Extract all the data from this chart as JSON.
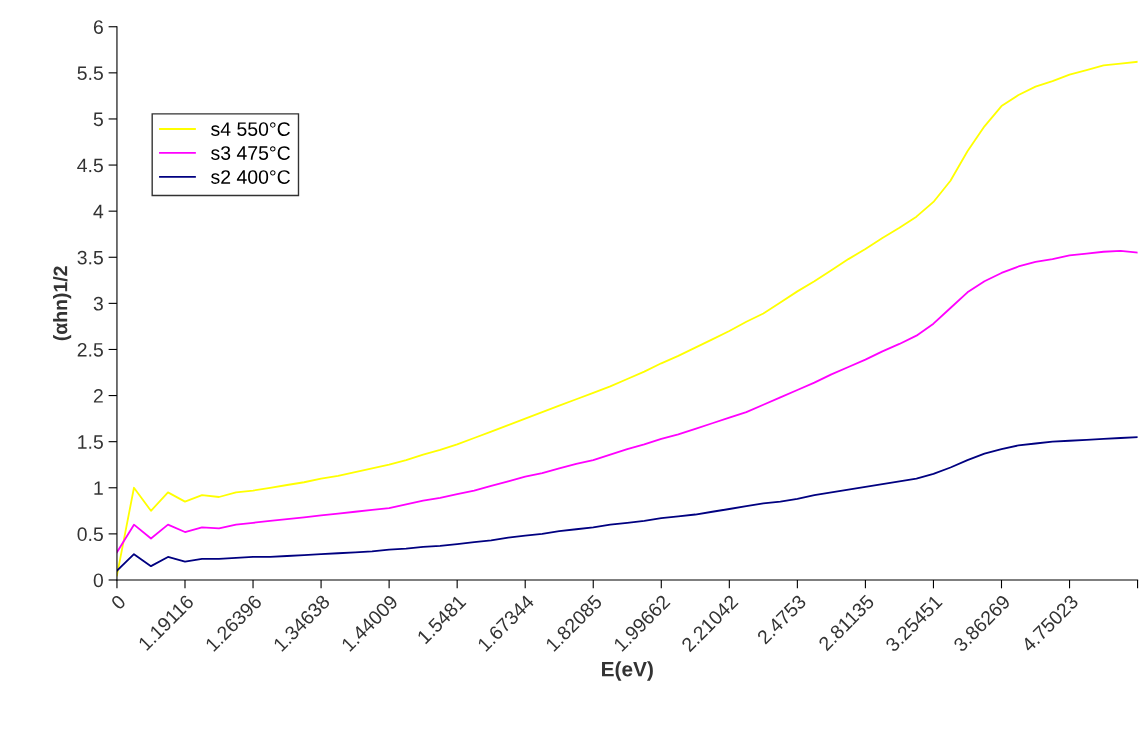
{
  "chart_data": {
    "type": "line",
    "xlabel": "E(eV)",
    "ylabel": "(αhn)1/2",
    "categories": [
      "0",
      null,
      null,
      null,
      "1.19116",
      null,
      null,
      null,
      "1.26396",
      null,
      null,
      null,
      "1.34638",
      null,
      null,
      null,
      "1.44009",
      null,
      null,
      null,
      "1.5481",
      null,
      null,
      null,
      "1.67344",
      null,
      null,
      null,
      "1.82085",
      null,
      null,
      null,
      "1.99662",
      null,
      null,
      null,
      "2.21042",
      null,
      null,
      null,
      "2.4753",
      null,
      null,
      null,
      "2.81135",
      null,
      null,
      null,
      "3.25451",
      null,
      null,
      null,
      "3.86269",
      null,
      null,
      null,
      "4.75023",
      null,
      null,
      null,
      null
    ],
    "series": [
      {
        "name": "s4 550°C",
        "color": "#ffff00",
        "values": [
          0.05,
          1.0,
          0.75,
          0.95,
          0.85,
          0.92,
          0.9,
          0.95,
          0.97,
          1.0,
          1.03,
          1.06,
          1.1,
          1.13,
          1.17,
          1.21,
          1.25,
          1.3,
          1.36,
          1.41,
          1.47,
          1.54,
          1.61,
          1.68,
          1.75,
          1.82,
          1.89,
          1.96,
          2.03,
          2.1,
          2.18,
          2.26,
          2.35,
          2.43,
          2.52,
          2.61,
          2.7,
          2.8,
          2.89,
          3.01,
          3.13,
          3.24,
          3.36,
          3.48,
          3.59,
          3.71,
          3.82,
          3.94,
          4.1,
          4.33,
          4.65,
          4.92,
          5.14,
          5.26,
          5.35,
          5.41,
          5.48,
          5.53,
          5.58,
          5.6,
          5.62
        ]
      },
      {
        "name": "s3 475°C",
        "color": "#ff00ff",
        "values": [
          0.3,
          0.6,
          0.45,
          0.6,
          0.52,
          0.57,
          0.56,
          0.6,
          0.62,
          0.64,
          0.66,
          0.68,
          0.7,
          0.72,
          0.74,
          0.76,
          0.78,
          0.82,
          0.86,
          0.89,
          0.93,
          0.97,
          1.02,
          1.07,
          1.12,
          1.16,
          1.21,
          1.26,
          1.3,
          1.36,
          1.42,
          1.47,
          1.53,
          1.58,
          1.64,
          1.7,
          1.76,
          1.82,
          1.9,
          1.98,
          2.06,
          2.14,
          2.23,
          2.31,
          2.39,
          2.48,
          2.56,
          2.65,
          2.78,
          2.95,
          3.12,
          3.24,
          3.33,
          3.4,
          3.45,
          3.48,
          3.52,
          3.54,
          3.56,
          3.57,
          3.55
        ]
      },
      {
        "name": "s2 400°C",
        "color": "#000080",
        "values": [
          0.1,
          0.28,
          0.15,
          0.25,
          0.2,
          0.23,
          0.23,
          0.24,
          0.25,
          0.25,
          0.26,
          0.27,
          0.28,
          0.29,
          0.3,
          0.31,
          0.33,
          0.34,
          0.36,
          0.37,
          0.39,
          0.41,
          0.43,
          0.46,
          0.48,
          0.5,
          0.53,
          0.55,
          0.57,
          0.6,
          0.62,
          0.64,
          0.67,
          0.69,
          0.71,
          0.74,
          0.77,
          0.8,
          0.83,
          0.85,
          0.88,
          0.92,
          0.95,
          0.98,
          1.01,
          1.04,
          1.07,
          1.1,
          1.15,
          1.22,
          1.3,
          1.37,
          1.42,
          1.46,
          1.48,
          1.5,
          1.51,
          1.52,
          1.53,
          1.54,
          1.55
        ]
      }
    ],
    "ylim": [
      0,
      6
    ],
    "yticks": [
      0,
      0.5,
      1,
      1.5,
      2,
      2.5,
      3,
      3.5,
      4,
      4.5,
      5,
      5.5,
      6
    ],
    "grid": false,
    "legend": "top left",
    "marker": "none",
    "line_style": "solid"
  }
}
